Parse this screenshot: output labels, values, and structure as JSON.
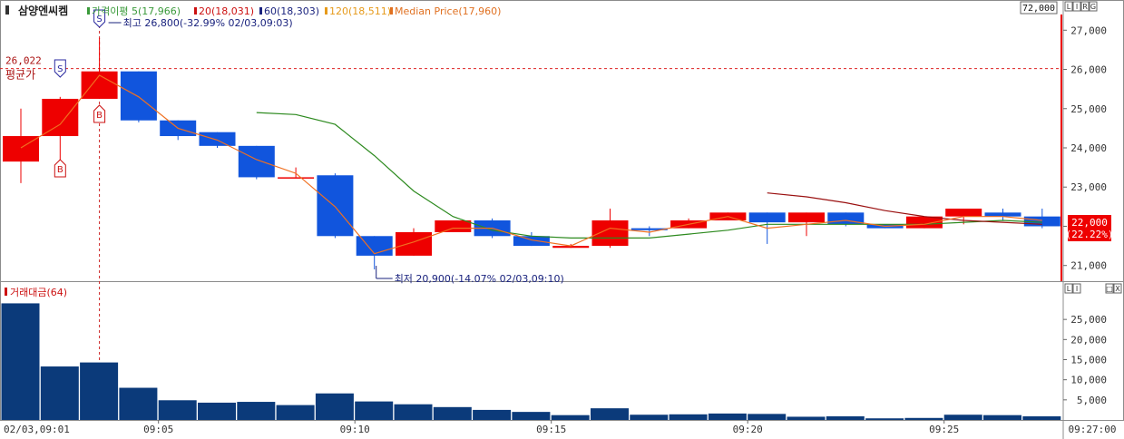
{
  "symbol": "삼양엔씨켐",
  "header_sep": "▪",
  "top_right_value": "72,000",
  "top_buttons": [
    "L",
    "I",
    "R",
    "G"
  ],
  "legend": [
    {
      "label": "가격이평 5(17,966)",
      "color": "#3a9a3a"
    },
    {
      "label": "20(18,031)",
      "color": "#cc1111"
    },
    {
      "label": "60(18,303)",
      "color": "#1a237e"
    },
    {
      "label": "120(18,511)",
      "color": "#e69a1a"
    },
    {
      "label": "Median Price(17,960)",
      "color": "#e07020"
    }
  ],
  "colors": {
    "up": "#ee0000",
    "down": "#1155dd",
    "ma5": "#2d8a1f",
    "ma20": "#9a1010",
    "median": "#f07020",
    "volume": "#0b3a7a",
    "current": "#ee0000"
  },
  "annotations": {
    "high": "최고 26,800(-32.99% 02/03,09:03)",
    "low": "최저 20,900(-14.07% 02/03,09:10)",
    "avg_value": "26,022",
    "avg_label": "평균가",
    "current_price": "22,000",
    "current_pct": "(22.22%)"
  },
  "signals": [
    {
      "index": 1,
      "label": "S"
    },
    {
      "index": 1,
      "label": "B"
    },
    {
      "index": 2,
      "label": "S"
    },
    {
      "index": 2,
      "label": "B"
    }
  ],
  "volume_panel": {
    "title": "거래대금(64)",
    "buttons": [
      "L",
      "I"
    ],
    "right_buttons": [
      "□",
      "X"
    ]
  },
  "x_axis": {
    "first_label": "02/03,09:01",
    "ticks": [
      {
        "index": 4,
        "label": "09:05"
      },
      {
        "index": 9,
        "label": "09:10"
      },
      {
        "index": 14,
        "label": "09:15"
      },
      {
        "index": 19,
        "label": "09:20"
      },
      {
        "index": 24,
        "label": "09:25"
      }
    ],
    "last_label": "09:27:00"
  },
  "chart_data": [
    {
      "type": "candlestick",
      "title": "",
      "y_ticks": [
        "21,000",
        "22,000",
        "23,000",
        "24,000",
        "25,000",
        "26,000",
        "27,000"
      ],
      "ylim": [
        20600,
        27400
      ],
      "ohlc": [
        [
          23650,
          25000,
          23100,
          24300
        ],
        [
          24300,
          25300,
          23650,
          25250
        ],
        [
          25250,
          26800,
          25250,
          25950
        ],
        [
          25950,
          25950,
          24650,
          24700
        ],
        [
          24700,
          24700,
          24200,
          24300
        ],
        [
          24400,
          24400,
          24000,
          24050
        ],
        [
          24050,
          24050,
          23200,
          23250
        ],
        [
          23250,
          23500,
          23250,
          23250
        ],
        [
          23300,
          23350,
          21700,
          21750
        ],
        [
          21750,
          21750,
          20900,
          21250
        ],
        [
          21250,
          21950,
          21250,
          21850
        ],
        [
          21850,
          22100,
          21850,
          22150
        ],
        [
          22150,
          22200,
          21700,
          21750
        ],
        [
          21750,
          21850,
          21500,
          21500
        ],
        [
          21450,
          21550,
          21450,
          21500
        ],
        [
          21500,
          22450,
          21450,
          22150
        ],
        [
          21950,
          22000,
          21750,
          21900
        ],
        [
          21950,
          22200,
          21950,
          22150
        ],
        [
          22150,
          22350,
          22150,
          22350
        ],
        [
          22350,
          22350,
          21550,
          22100
        ],
        [
          22100,
          22350,
          21750,
          22350
        ],
        [
          22350,
          22350,
          22000,
          22050
        ],
        [
          22050,
          22050,
          21950,
          21950
        ],
        [
          21950,
          22200,
          21950,
          22250
        ],
        [
          22250,
          22450,
          22050,
          22450
        ],
        [
          22350,
          22450,
          22150,
          22250
        ],
        [
          22250,
          22450,
          21950,
          22000
        ]
      ],
      "series": [
        {
          "name": "5",
          "points": [
            [
              6,
              24900
            ],
            [
              7,
              24850
            ],
            [
              8,
              24600
            ],
            [
              9,
              23800
            ],
            [
              10,
              22900
            ],
            [
              11,
              22250
            ],
            [
              12,
              21900
            ],
            [
              13,
              21750
            ],
            [
              14,
              21700
            ],
            [
              15,
              21700
            ],
            [
              16,
              21700
            ],
            [
              17,
              21800
            ],
            [
              18,
              21900
            ],
            [
              19,
              22050
            ],
            [
              20,
              22050
            ],
            [
              21,
              22050
            ],
            [
              22,
              22050
            ],
            [
              23,
              22050
            ],
            [
              24,
              22100
            ],
            [
              25,
              22150
            ],
            [
              26,
              22100
            ]
          ]
        },
        {
          "name": "20",
          "points": [
            [
              19,
              22850
            ],
            [
              20,
              22750
            ],
            [
              21,
              22600
            ],
            [
              22,
              22400
            ],
            [
              23,
              22250
            ],
            [
              24,
              22150
            ],
            [
              25,
              22100
            ],
            [
              26,
              22050
            ]
          ]
        },
        {
          "name": "Median Price",
          "points": [
            [
              0,
              24000
            ],
            [
              1,
              24600
            ],
            [
              2,
              25850
            ],
            [
              3,
              25300
            ],
            [
              4,
              24500
            ],
            [
              5,
              24200
            ],
            [
              6,
              23700
            ],
            [
              7,
              23350
            ],
            [
              8,
              22500
            ],
            [
              9,
              21300
            ],
            [
              10,
              21600
            ],
            [
              11,
              21950
            ],
            [
              12,
              21950
            ],
            [
              13,
              21650
            ],
            [
              14,
              21500
            ],
            [
              15,
              21950
            ],
            [
              16,
              21850
            ],
            [
              17,
              22050
            ],
            [
              18,
              22250
            ],
            [
              19,
              21950
            ],
            [
              20,
              22050
            ],
            [
              21,
              22150
            ],
            [
              22,
              22000
            ],
            [
              23,
              22050
            ],
            [
              24,
              22250
            ],
            [
              25,
              22250
            ],
            [
              26,
              22150
            ]
          ]
        }
      ]
    },
    {
      "type": "bar",
      "title": "거래대금(64)",
      "y_ticks": [
        "5,000",
        "10,000",
        "15,000",
        "20,000",
        "25,000"
      ],
      "ylim": [
        0,
        30000
      ],
      "values": [
        29000,
        13300,
        14300,
        8000,
        4900,
        4300,
        4500,
        3700,
        6600,
        4600,
        3900,
        3200,
        2500,
        2000,
        1200,
        2900,
        1300,
        1400,
        1600,
        1500,
        800,
        900,
        400,
        500,
        1300,
        1200,
        900
      ]
    }
  ]
}
